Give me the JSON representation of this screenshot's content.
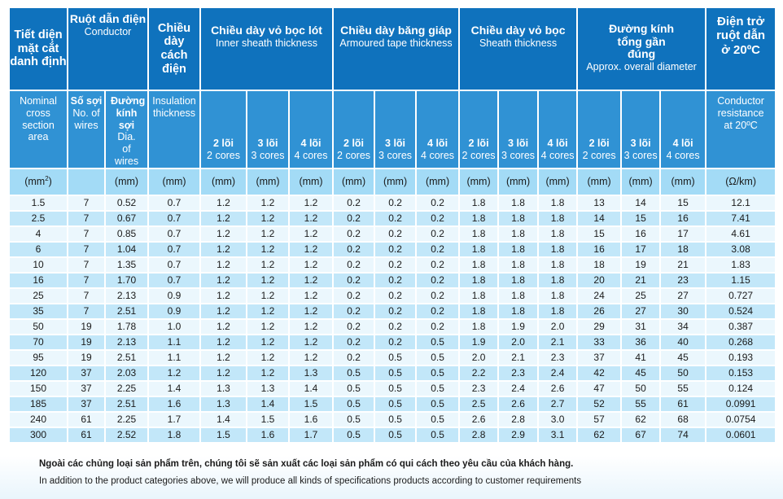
{
  "header": {
    "cross_section": {
      "vi": "Tiết diện mặt cắt danh định",
      "en": "Nominal cross section area",
      "unit": "(mm²)"
    },
    "conductor": {
      "vi": "Ruột dẫn điện",
      "en": "Conductor",
      "wires": {
        "vi": "Số sợi",
        "en": "No. of wires",
        "unit": ""
      },
      "dia": {
        "vi": "Đường kính sợi",
        "en": "Dia. of wires",
        "unit": "(mm)"
      }
    },
    "insulation": {
      "vi": "Chiều dày cách điện",
      "en": "Insulation thickness",
      "unit": "(mm)"
    },
    "inner_sheath": {
      "vi": "Chiều dày vỏ bọc lót",
      "en": "Inner sheath thickness"
    },
    "armoured_tape": {
      "vi": "Chiều dày băng giáp",
      "en": "Armoured tape thickness"
    },
    "sheath": {
      "vi": "Chiều dày vỏ bọc",
      "en": "Sheath thickness"
    },
    "diameter": {
      "vi": "Đường kính tổng gần đúng",
      "en": "Approx. overall diameter"
    },
    "resistance": {
      "vi": "Điện trở ruột dẫn ở 20ºC",
      "en": "Conductor resistance at 20ºC",
      "unit": "(Ω/km)"
    },
    "cores": [
      {
        "vi": "2 lõi",
        "en": "2 cores"
      },
      {
        "vi": "3 lõi",
        "en": "3 cores"
      },
      {
        "vi": "4 lõi",
        "en": "4 cores"
      }
    ],
    "mm_unit": "(mm)"
  },
  "rows": [
    [
      "1.5",
      "7",
      "0.52",
      "0.7",
      "1.2",
      "1.2",
      "1.2",
      "0.2",
      "0.2",
      "0.2",
      "1.8",
      "1.8",
      "1.8",
      "13",
      "14",
      "15",
      "12.1"
    ],
    [
      "2.5",
      "7",
      "0.67",
      "0.7",
      "1.2",
      "1.2",
      "1.2",
      "0.2",
      "0.2",
      "0.2",
      "1.8",
      "1.8",
      "1.8",
      "14",
      "15",
      "16",
      "7.41"
    ],
    [
      "4",
      "7",
      "0.85",
      "0.7",
      "1.2",
      "1.2",
      "1.2",
      "0.2",
      "0.2",
      "0.2",
      "1.8",
      "1.8",
      "1.8",
      "15",
      "16",
      "17",
      "4.61"
    ],
    [
      "6",
      "7",
      "1.04",
      "0.7",
      "1.2",
      "1.2",
      "1.2",
      "0.2",
      "0.2",
      "0.2",
      "1.8",
      "1.8",
      "1.8",
      "16",
      "17",
      "18",
      "3.08"
    ],
    [
      "10",
      "7",
      "1.35",
      "0.7",
      "1.2",
      "1.2",
      "1.2",
      "0.2",
      "0.2",
      "0.2",
      "1.8",
      "1.8",
      "1.8",
      "18",
      "19",
      "21",
      "1.83"
    ],
    [
      "16",
      "7",
      "1.70",
      "0.7",
      "1.2",
      "1.2",
      "1.2",
      "0.2",
      "0.2",
      "0.2",
      "1.8",
      "1.8",
      "1.8",
      "20",
      "21",
      "23",
      "1.15"
    ],
    [
      "25",
      "7",
      "2.13",
      "0.9",
      "1.2",
      "1.2",
      "1.2",
      "0.2",
      "0.2",
      "0.2",
      "1.8",
      "1.8",
      "1.8",
      "24",
      "25",
      "27",
      "0.727"
    ],
    [
      "35",
      "7",
      "2.51",
      "0.9",
      "1.2",
      "1.2",
      "1.2",
      "0.2",
      "0.2",
      "0.2",
      "1.8",
      "1.8",
      "1.8",
      "26",
      "27",
      "30",
      "0.524"
    ],
    [
      "50",
      "19",
      "1.78",
      "1.0",
      "1.2",
      "1.2",
      "1.2",
      "0.2",
      "0.2",
      "0.2",
      "1.8",
      "1.9",
      "2.0",
      "29",
      "31",
      "34",
      "0.387"
    ],
    [
      "70",
      "19",
      "2.13",
      "1.1",
      "1.2",
      "1.2",
      "1.2",
      "0.2",
      "0.2",
      "0.5",
      "1.9",
      "2.0",
      "2.1",
      "33",
      "36",
      "40",
      "0.268"
    ],
    [
      "95",
      "19",
      "2.51",
      "1.1",
      "1.2",
      "1.2",
      "1.2",
      "0.2",
      "0.5",
      "0.5",
      "2.0",
      "2.1",
      "2.3",
      "37",
      "41",
      "45",
      "0.193"
    ],
    [
      "120",
      "37",
      "2.03",
      "1.2",
      "1.2",
      "1.2",
      "1.3",
      "0.5",
      "0.5",
      "0.5",
      "2.2",
      "2.3",
      "2.4",
      "42",
      "45",
      "50",
      "0.153"
    ],
    [
      "150",
      "37",
      "2.25",
      "1.4",
      "1.3",
      "1.3",
      "1.4",
      "0.5",
      "0.5",
      "0.5",
      "2.3",
      "2.4",
      "2.6",
      "47",
      "50",
      "55",
      "0.124"
    ],
    [
      "185",
      "37",
      "2.51",
      "1.6",
      "1.3",
      "1.4",
      "1.5",
      "0.5",
      "0.5",
      "0.5",
      "2.5",
      "2.6",
      "2.7",
      "52",
      "55",
      "61",
      "0.0991"
    ],
    [
      "240",
      "61",
      "2.25",
      "1.7",
      "1.4",
      "1.5",
      "1.6",
      "0.5",
      "0.5",
      "0.5",
      "2.6",
      "2.8",
      "3.0",
      "57",
      "62",
      "68",
      "0.0754"
    ],
    [
      "300",
      "61",
      "2.52",
      "1.8",
      "1.5",
      "1.6",
      "1.7",
      "0.5",
      "0.5",
      "0.5",
      "2.8",
      "2.9",
      "3.1",
      "62",
      "67",
      "74",
      "0.0601"
    ]
  ],
  "footer": {
    "note_vi": "Ngoài các chủng loại sản phẩm trên, chúng tôi sẽ sản xuất các loại sản phẩm có qui cách theo yêu cầu của khách hàng.",
    "note_en": "In addition to the product categories above, we will produce all kinds of specifications products according to customer requirements"
  },
  "colors": {
    "header_dark": "#0f72bd",
    "header_mid": "#3092d4",
    "unit_row": "#a3dbf6",
    "row_light": "#ebf7fd",
    "row_dark": "#c2e7f9"
  }
}
